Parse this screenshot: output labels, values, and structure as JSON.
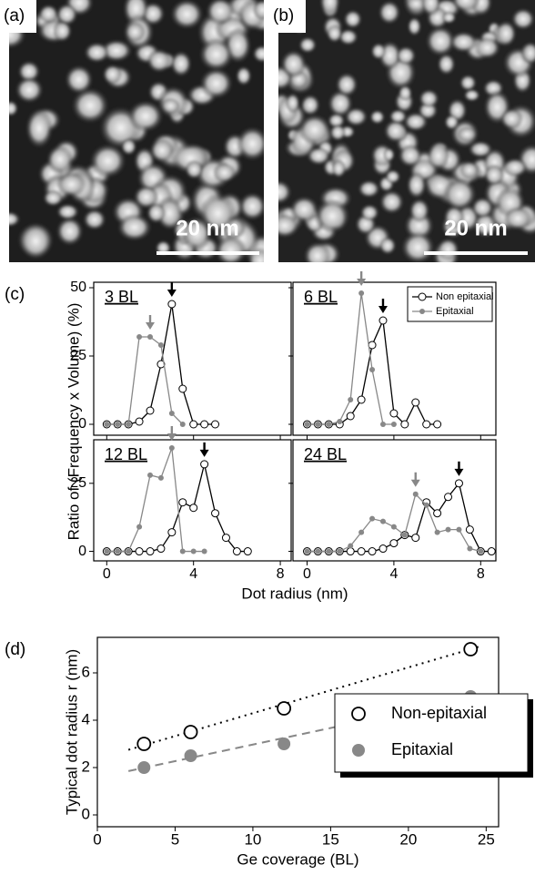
{
  "images": [
    {
      "label": "(a)",
      "scale_bar": "20 nm"
    },
    {
      "label": "(b)",
      "scale_bar": "20 nm"
    }
  ],
  "chart_data": [
    {
      "type": "line",
      "panel": "(c)",
      "title": "3 BL",
      "ylabel": "Ratio of (Frequency x Volume) (%)",
      "xlim": [
        -0.6,
        8.5
      ],
      "ylim": [
        -4,
        52
      ],
      "yticks": [
        0,
        25,
        50
      ],
      "series": [
        {
          "color": "#000000",
          "marker": "open",
          "peak": 3,
          "x": [
            0,
            0.5,
            1,
            1.5,
            2,
            2.5,
            3,
            3.5,
            4,
            4.5,
            5
          ],
          "values": [
            0,
            0,
            0,
            1,
            5,
            22,
            44,
            13,
            0,
            0,
            0
          ]
        },
        {
          "color": "#888888",
          "marker": "filled",
          "peak": 2,
          "x": [
            0,
            0.5,
            1,
            1.5,
            2,
            2.5,
            3,
            3.5
          ],
          "values": [
            0,
            0,
            0,
            32,
            32,
            29,
            4,
            0
          ]
        }
      ]
    },
    {
      "type": "line",
      "title": "6 BL",
      "legend": "upper right",
      "xlim": [
        -0.65,
        8.7
      ],
      "ylim": [
        -4,
        52
      ],
      "series": [
        {
          "name": "Non epitaxial",
          "color": "#000000",
          "marker": "open",
          "peak": 3.5,
          "x": [
            0,
            0.5,
            1,
            1.5,
            2,
            2.5,
            3,
            3.5,
            4,
            4.5,
            5,
            5.5,
            6
          ],
          "values": [
            0,
            0,
            0,
            0,
            3,
            9,
            29,
            38,
            4,
            0,
            8,
            0,
            0
          ]
        },
        {
          "name": "Epitaxial",
          "color": "#888888",
          "marker": "filled",
          "peak": 2.5,
          "x": [
            0,
            0.5,
            1,
            1.5,
            2,
            2.5,
            3,
            3.5,
            4
          ],
          "values": [
            0,
            0,
            0,
            1,
            9,
            48,
            20,
            0,
            0
          ]
        }
      ]
    },
    {
      "type": "line",
      "title": "12 BL",
      "xlabel": "Dot radius (nm)",
      "xlim": [
        -0.6,
        8.5
      ],
      "ylim": [
        -3.5,
        41
      ],
      "yticks": [
        0,
        25
      ],
      "xticks": [
        0,
        4,
        8
      ],
      "series": [
        {
          "color": "#000000",
          "marker": "open",
          "peak": 4.5,
          "x": [
            0,
            0.5,
            1,
            1.5,
            2,
            2.5,
            3,
            3.5,
            4,
            4.5,
            5,
            5.5,
            6,
            6.5
          ],
          "values": [
            0,
            0,
            0,
            0,
            0,
            1,
            7,
            18,
            16,
            32,
            14,
            5,
            0,
            0
          ]
        },
        {
          "color": "#888888",
          "marker": "filled",
          "peak": 3,
          "x": [
            0,
            0.5,
            1,
            1.5,
            2,
            2.5,
            3,
            3.5,
            4,
            4.5
          ],
          "values": [
            0,
            0,
            0,
            9,
            28,
            27,
            38,
            0,
            0,
            0
          ]
        }
      ]
    },
    {
      "type": "line",
      "title": "24 BL",
      "xlim": [
        -0.65,
        8.7
      ],
      "ylim": [
        -3.5,
        41
      ],
      "xticks": [
        0,
        4,
        8
      ],
      "series": [
        {
          "color": "#000000",
          "marker": "open",
          "peak": 7,
          "x": [
            0,
            0.5,
            1,
            1.5,
            2,
            2.5,
            3,
            3.5,
            4,
            4.5,
            5,
            5.5,
            6,
            6.5,
            7,
            7.5,
            8,
            8.5
          ],
          "values": [
            0,
            0,
            0,
            0,
            0,
            0,
            0,
            1,
            3,
            6,
            5,
            18,
            14,
            20,
            25,
            8,
            0,
            0
          ]
        },
        {
          "color": "#888888",
          "marker": "filled",
          "peak": 5,
          "x": [
            0,
            0.5,
            1,
            1.5,
            2,
            2.5,
            3,
            3.5,
            4,
            4.5,
            5,
            5.5,
            6,
            6.5,
            7,
            7.5,
            8
          ],
          "values": [
            0,
            0,
            0,
            0,
            2,
            7,
            12,
            11,
            9,
            6,
            21,
            17,
            7,
            8,
            8,
            1,
            0
          ]
        }
      ]
    },
    {
      "type": "scatter",
      "panel": "(d)",
      "xlabel": "Ge coverage (BL)",
      "ylabel": "Typical dot radius r (nm)",
      "xlim": [
        0,
        25.8
      ],
      "ylim": [
        -0.5,
        7.5
      ],
      "xticks": [
        0,
        5,
        10,
        15,
        20,
        25
      ],
      "yticks": [
        0,
        2,
        4,
        6
      ],
      "legend": "lower right",
      "series": [
        {
          "name": "Non-epitaxial",
          "color": "#000000",
          "marker": "open",
          "x": [
            3,
            6,
            12,
            24
          ],
          "values": [
            3,
            3.5,
            4.5,
            7
          ],
          "fit": {
            "style": "dotted",
            "x": [
              2,
              24.5
            ],
            "values": [
              2.75,
              7.1
            ]
          }
        },
        {
          "name": "Epitaxial",
          "color": "#888888",
          "marker": "filled",
          "x": [
            3,
            6,
            12,
            24
          ],
          "values": [
            2,
            2.5,
            3,
            5
          ],
          "fit": {
            "style": "dashed",
            "x": [
              2,
              24.5
            ],
            "values": [
              1.85,
              5
            ]
          }
        }
      ]
    }
  ]
}
